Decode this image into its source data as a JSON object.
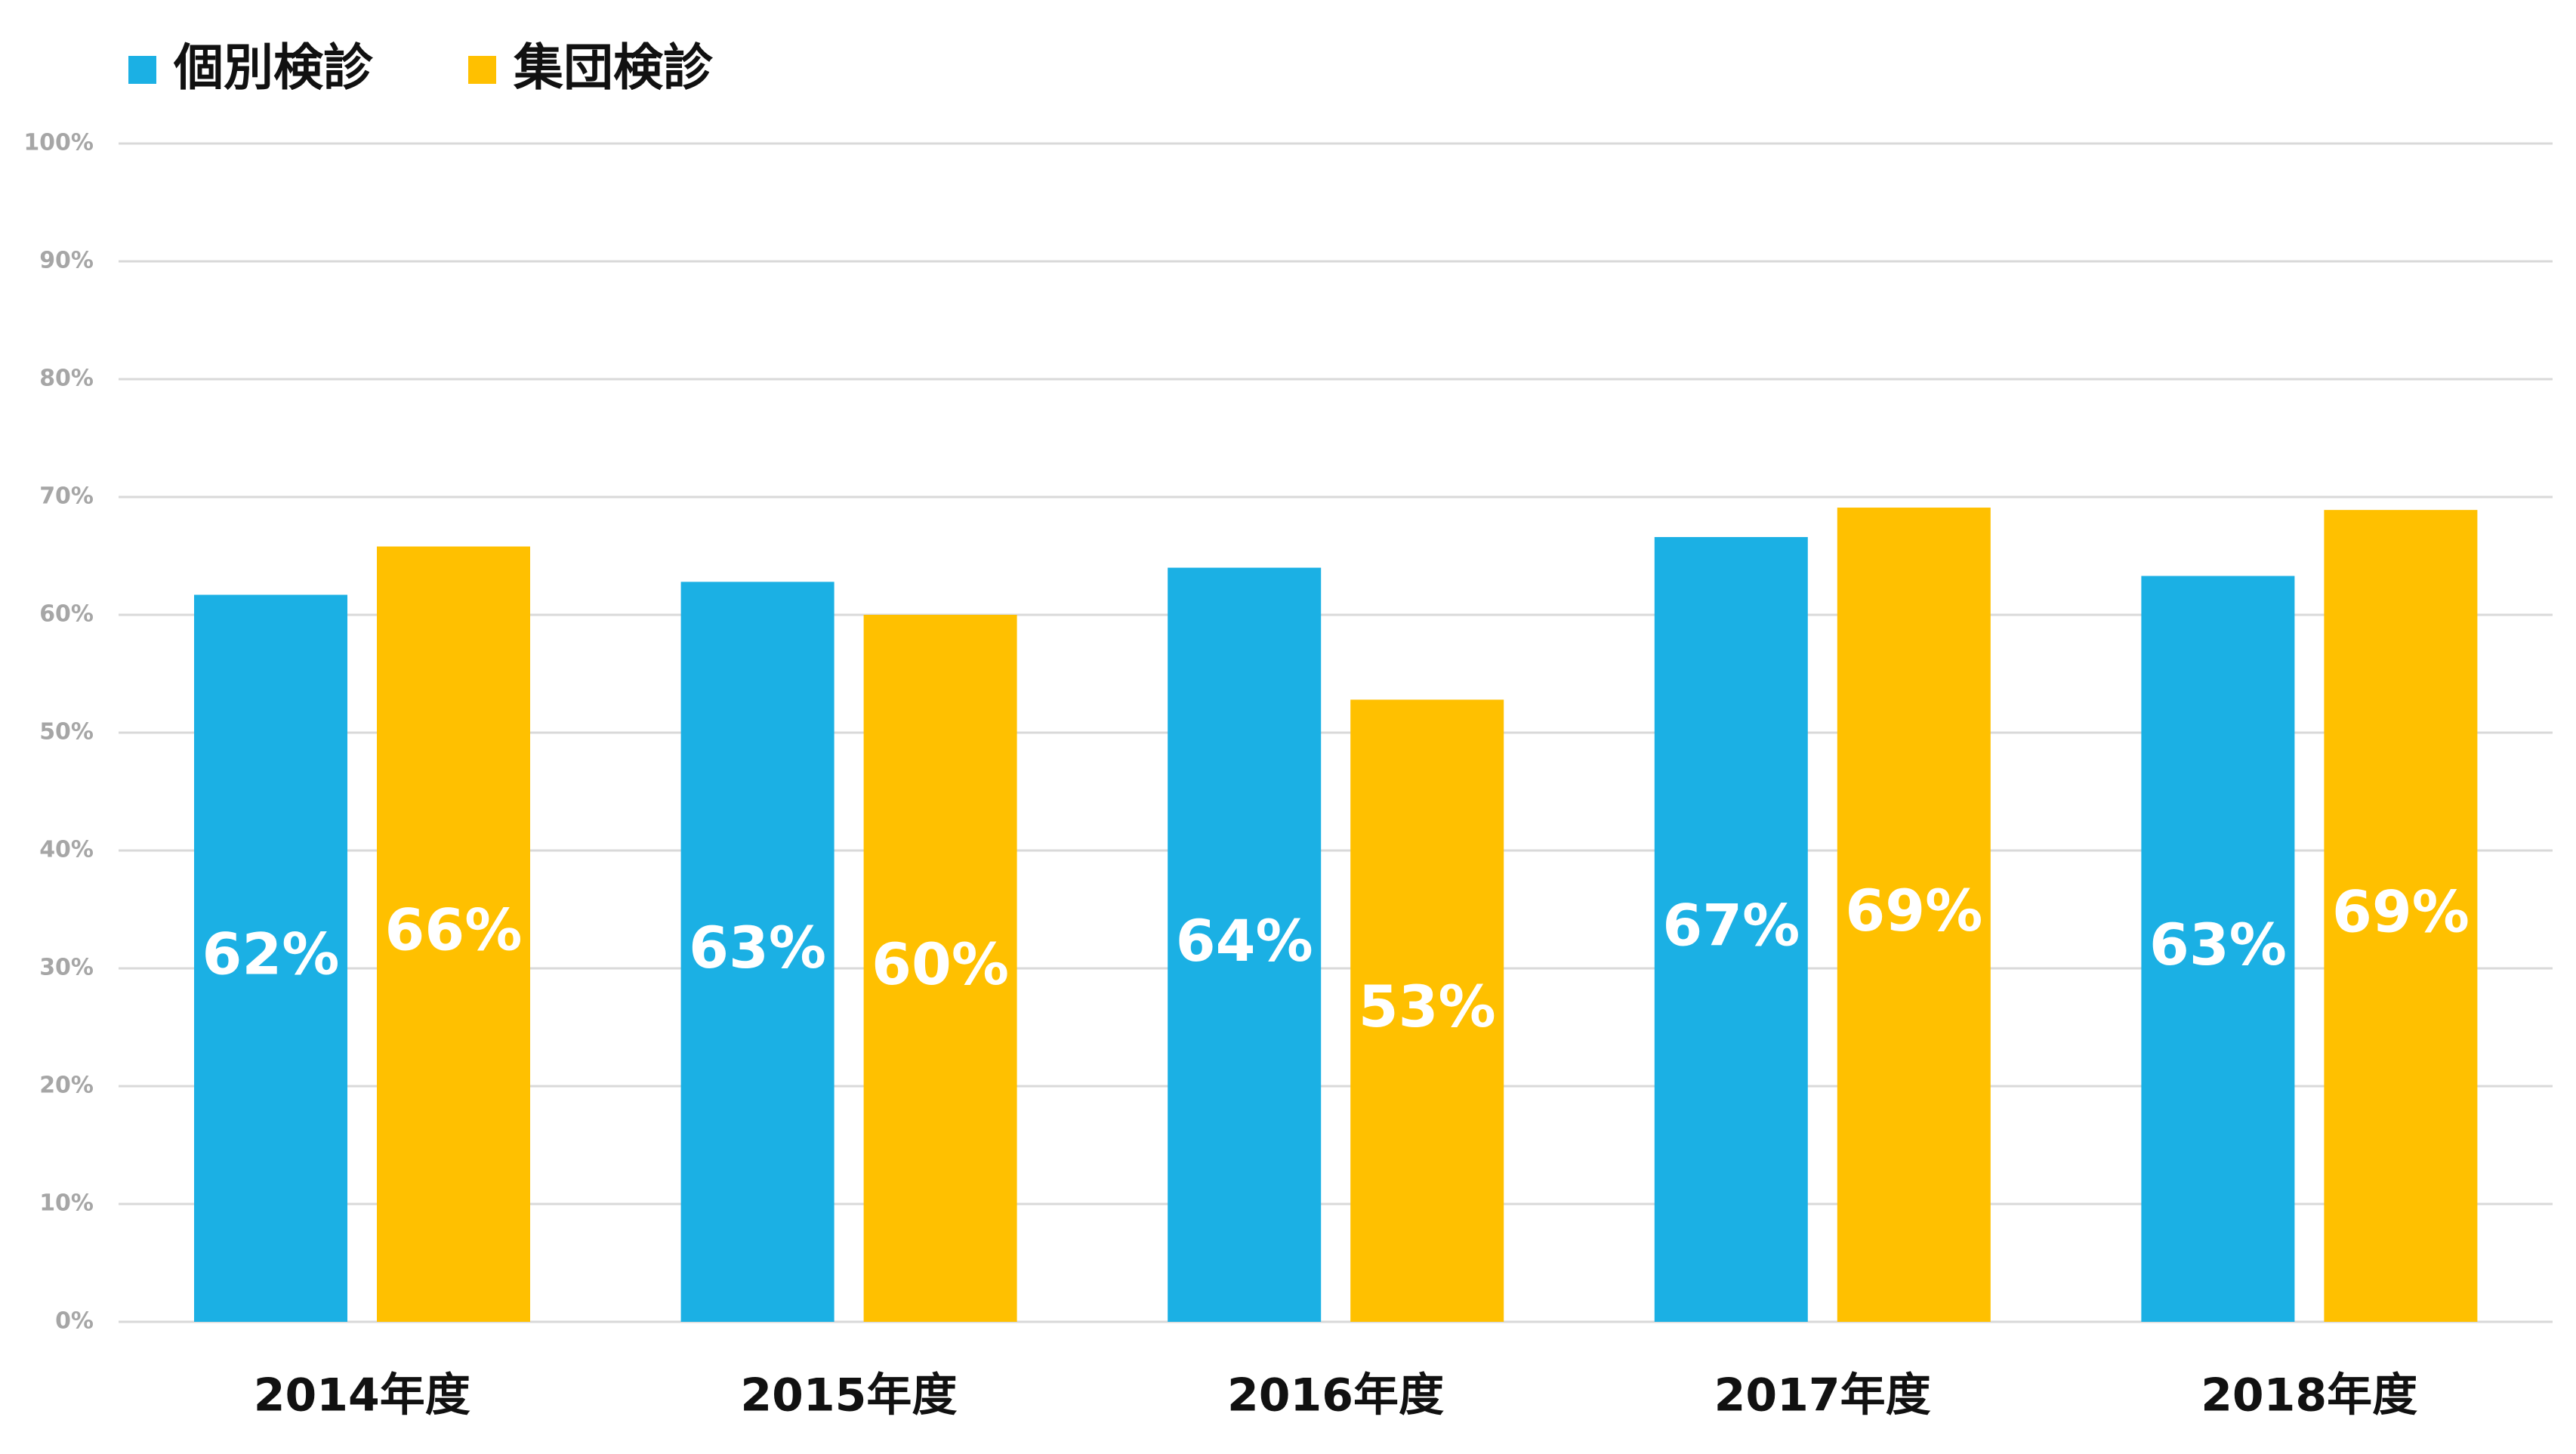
{
  "chart_data": {
    "type": "bar",
    "categories": [
      "2014年度",
      "2015年度",
      "2016年度",
      "2017年度",
      "2018年度"
    ],
    "series": [
      {
        "name": "個別検診",
        "color": "#1bb0e4",
        "values": [
          61.7,
          62.8,
          64,
          66.6,
          63.3
        ],
        "value_labels": [
          "62%",
          "63%",
          "64%",
          "67%",
          "63%"
        ]
      },
      {
        "name": "集団検診",
        "color": "#ffc000",
        "values": [
          65.8,
          60,
          52.8,
          69.1,
          68.9
        ],
        "value_labels": [
          "66%",
          "60%",
          "53%",
          "69%",
          "69%"
        ]
      }
    ],
    "ylim": [
      0,
      100
    ],
    "yticks": [
      {
        "value": 0,
        "label": "0%"
      },
      {
        "value": 10,
        "label": "10%"
      },
      {
        "value": 20,
        "label": "20%"
      },
      {
        "value": 30,
        "label": "30%"
      },
      {
        "value": 40,
        "label": "40%"
      },
      {
        "value": 50,
        "label": "50%"
      },
      {
        "value": 60,
        "label": "60%"
      },
      {
        "value": 70,
        "label": "70%"
      },
      {
        "value": 80,
        "label": "80%"
      },
      {
        "value": 90,
        "label": "90%"
      },
      {
        "value": 100,
        "label": "100%"
      }
    ],
    "grid": true
  }
}
